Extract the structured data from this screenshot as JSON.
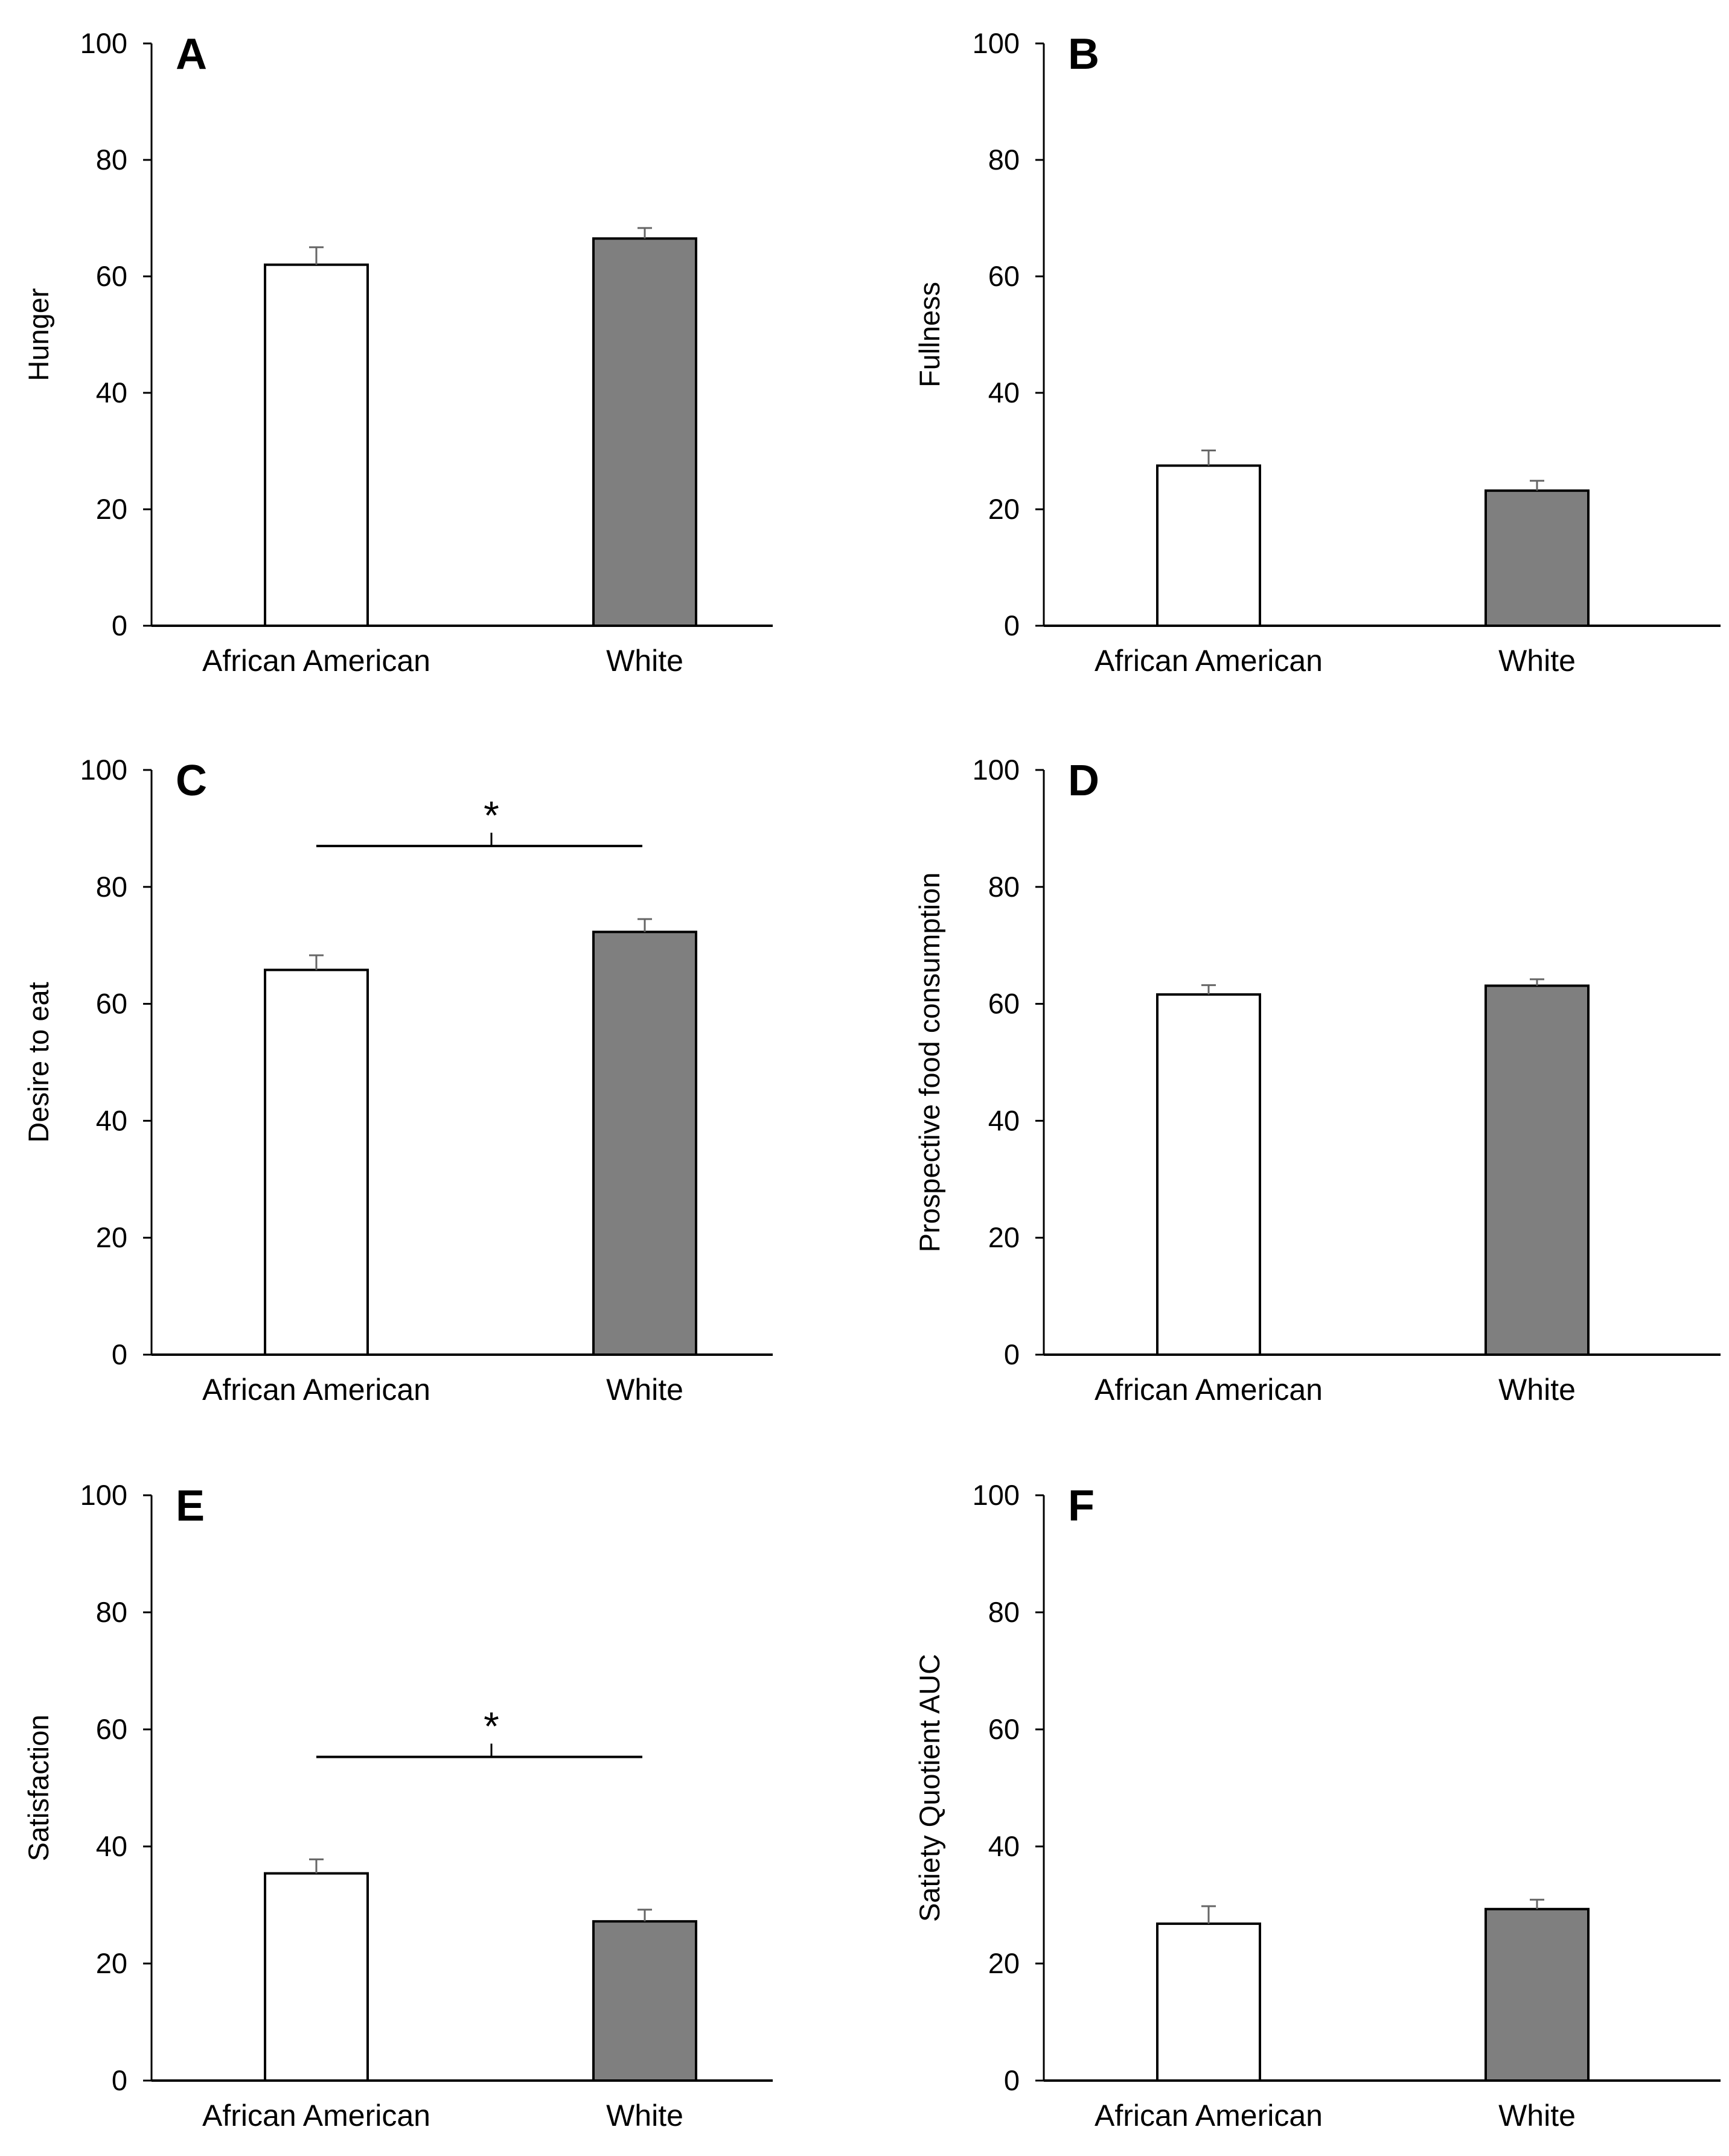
{
  "chart_data": [
    {
      "panel": "A",
      "type": "bar",
      "ylabel": "Hunger",
      "categories": [
        "African American",
        "White"
      ],
      "values": [
        62,
        66.5
      ],
      "errors": [
        3,
        1.8
      ],
      "colors": [
        "#ffffff",
        "#7f7f7f"
      ],
      "ylim": [
        0,
        100
      ],
      "ticks": [
        "0",
        "20",
        "40",
        "60",
        "80",
        "100"
      ],
      "significance": null
    },
    {
      "panel": "B",
      "type": "bar",
      "ylabel": "Fullness",
      "categories": [
        "African American",
        "White"
      ],
      "values": [
        27.5,
        23.2
      ],
      "errors": [
        2.6,
        1.7
      ],
      "colors": [
        "#ffffff",
        "#7f7f7f"
      ],
      "ylim": [
        0,
        100
      ],
      "ticks": [
        "0",
        "20",
        "40",
        "60",
        "80",
        "100"
      ],
      "significance": null
    },
    {
      "panel": "C",
      "type": "bar",
      "ylabel": "Desire to eat",
      "categories": [
        "African American",
        "White"
      ],
      "values": [
        65.8,
        72.3
      ],
      "errors": [
        2.5,
        2.2
      ],
      "colors": [
        "#ffffff",
        "#7f7f7f"
      ],
      "ylim": [
        0,
        100
      ],
      "ticks": [
        "0",
        "20",
        "40",
        "60",
        "80",
        "100"
      ],
      "significance": {
        "label": "*",
        "y": 87
      }
    },
    {
      "panel": "D",
      "type": "bar",
      "ylabel": "Prospective food consumption",
      "categories": [
        "African American",
        "White"
      ],
      "values": [
        61.6,
        63.1
      ],
      "errors": [
        1.6,
        1.1
      ],
      "colors": [
        "#ffffff",
        "#7f7f7f"
      ],
      "ylim": [
        0,
        100
      ],
      "ticks": [
        "0",
        "20",
        "40",
        "60",
        "80",
        "100"
      ],
      "significance": null
    },
    {
      "panel": "E",
      "type": "bar",
      "ylabel": "Satisfaction",
      "categories": [
        "African American",
        "White"
      ],
      "values": [
        35.4,
        27.2
      ],
      "errors": [
        2.4,
        2.0
      ],
      "colors": [
        "#ffffff",
        "#7f7f7f"
      ],
      "ylim": [
        0,
        100
      ],
      "ticks": [
        "0",
        "20",
        "40",
        "60",
        "80",
        "100"
      ],
      "significance": {
        "label": "*",
        "y": 55.3
      }
    },
    {
      "panel": "F",
      "type": "bar",
      "ylabel": "Satiety Quotient AUC",
      "categories": [
        "African American",
        "White"
      ],
      "values": [
        26.8,
        29.3
      ],
      "errors": [
        3.0,
        1.6
      ],
      "colors": [
        "#ffffff",
        "#7f7f7f"
      ],
      "ylim": [
        0,
        100
      ],
      "ticks": [
        "0",
        "20",
        "40",
        "60",
        "80",
        "100"
      ],
      "significance": null
    }
  ]
}
